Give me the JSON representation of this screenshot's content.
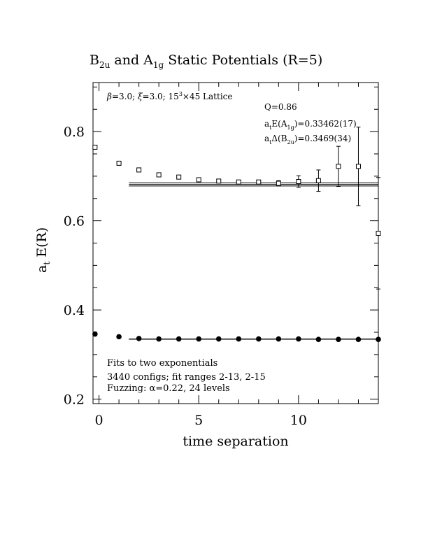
{
  "chart_data": {
    "type": "scatter",
    "title_parts": {
      "b": "B",
      "b_sub": "2u",
      "and": " and A",
      "a_sub": "1g",
      "rest": " Static Potentials (R=5)"
    },
    "xlabel": "time separation",
    "ylabel": "a",
    "ylabel_sub": "t",
    "ylabel_rest": " E(R)",
    "xlim": [
      -0.3,
      14
    ],
    "ylim": [
      0.19,
      0.91
    ],
    "xticks": [
      0,
      5,
      10
    ],
    "xtick_labels": [
      "0",
      "5",
      "10"
    ],
    "yticks": [
      0.2,
      0.4,
      0.6,
      0.8
    ],
    "ytick_labels": [
      "0.2",
      "0.4",
      "0.6",
      "0.8"
    ],
    "lattice_label_parts": {
      "beta": "β",
      "beta_val": "=3.0; ",
      "xi": "ξ",
      "xi_val": "=3.0; 15",
      "sup": "3",
      "rest": "×45 Lattice"
    },
    "q_label": "Q=0.86",
    "energy_label_parts": {
      "a": "a",
      "a_sub": "t",
      "mid": "E(A",
      "sub": "1g",
      "val": ")=0.33462(17)"
    },
    "delta_label_parts": {
      "a": "a",
      "a_sub": "t",
      "mid": "Δ(B",
      "sub": "2u",
      "val": ")=0.3469(34)"
    },
    "fits_lines": [
      "Fits to two exponentials",
      "3440 configs; fit ranges 2-13, 2-15",
      "Fuzzing: α=0.22, 24 levels"
    ],
    "series": [
      {
        "marker": "open-square",
        "x": [
          -0.2,
          1,
          2,
          3,
          4,
          5,
          6,
          7,
          8,
          9,
          10,
          11,
          12,
          13,
          14
        ],
        "y": [
          0.765,
          0.729,
          0.714,
          0.703,
          0.698,
          0.692,
          0.689,
          0.687,
          0.687,
          0.684,
          0.688,
          0.69,
          0.722,
          0.722,
          0.572
        ],
        "yerr": [
          0.004,
          0.003,
          0.003,
          0.003,
          0.003,
          0.004,
          0.003,
          0.004,
          0.004,
          0.006,
          0.013,
          0.024,
          0.045,
          0.088,
          0.125
        ]
      },
      {
        "marker": "filled-circle",
        "x": [
          -0.2,
          1,
          2,
          3,
          4,
          5,
          6,
          7,
          8,
          9,
          10,
          11,
          12,
          13,
          14
        ],
        "y": [
          0.346,
          0.34,
          0.336,
          0.335,
          0.335,
          0.335,
          0.335,
          0.335,
          0.335,
          0.335,
          0.335,
          0.334,
          0.334,
          0.334,
          0.334
        ],
        "yerr": [
          0,
          0,
          0,
          0,
          0,
          0,
          0,
          0,
          0,
          0,
          0,
          0,
          0,
          0,
          0
        ]
      }
    ],
    "fit_bands": [
      {
        "x": [
          1.5,
          14.2
        ],
        "center": 0.6815,
        "halfwidth": 0.0035
      },
      {
        "x": [
          1.5,
          14.2
        ],
        "center": 0.3346,
        "halfwidth": 0.0003
      }
    ]
  }
}
